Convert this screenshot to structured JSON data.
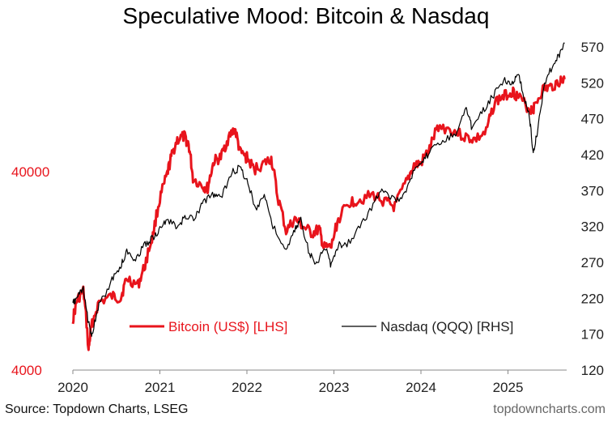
{
  "chart_data": {
    "type": "line",
    "title": "Speculative Mood: Bitcoin & Nasdaq",
    "xlabel": "",
    "x_ticks": [
      "2020",
      "2021",
      "2022",
      "2023",
      "2024",
      "2025"
    ],
    "x_range": [
      2020.0,
      2025.65
    ],
    "left_axis": {
      "scale": "log",
      "range": [
        4000,
        100000
      ],
      "ticks": [
        "40000",
        "4000"
      ],
      "tick_values": [
        40000,
        4000
      ],
      "color": "#e8141c"
    },
    "right_axis": {
      "scale": "linear",
      "range": [
        120,
        590
      ],
      "ticks": [
        "570",
        "520",
        "470",
        "420",
        "370",
        "320",
        "270",
        "220",
        "170",
        "120"
      ],
      "tick_values": [
        570,
        520,
        470,
        420,
        370,
        320,
        270,
        220,
        170,
        120
      ]
    },
    "series": [
      {
        "name": "Bitcoin (US$) [LHS]",
        "axis": "left",
        "color": "#e8141c",
        "points": [
          [
            2020.0,
            7200
          ],
          [
            2020.05,
            9000
          ],
          [
            2020.12,
            10000
          ],
          [
            2020.18,
            5000
          ],
          [
            2020.21,
            6500
          ],
          [
            2020.3,
            8800
          ],
          [
            2020.45,
            9400
          ],
          [
            2020.55,
            9200
          ],
          [
            2020.62,
            11600
          ],
          [
            2020.75,
            10700
          ],
          [
            2020.83,
            13500
          ],
          [
            2020.92,
            19000
          ],
          [
            2021.0,
            29000
          ],
          [
            2021.08,
            38000
          ],
          [
            2021.13,
            47000
          ],
          [
            2021.2,
            58000
          ],
          [
            2021.28,
            60000
          ],
          [
            2021.33,
            55000
          ],
          [
            2021.38,
            37000
          ],
          [
            2021.5,
            33500
          ],
          [
            2021.55,
            33000
          ],
          [
            2021.62,
            45000
          ],
          [
            2021.7,
            47000
          ],
          [
            2021.78,
            58000
          ],
          [
            2021.86,
            66000
          ],
          [
            2021.92,
            50000
          ],
          [
            2022.0,
            47000
          ],
          [
            2022.08,
            41000
          ],
          [
            2022.2,
            44000
          ],
          [
            2022.28,
            46500
          ],
          [
            2022.35,
            30000
          ],
          [
            2022.45,
            20000
          ],
          [
            2022.55,
            23000
          ],
          [
            2022.65,
            21000
          ],
          [
            2022.75,
            19500
          ],
          [
            2022.83,
            20500
          ],
          [
            2022.88,
            16500
          ],
          [
            2022.97,
            16600
          ],
          [
            2023.05,
            23000
          ],
          [
            2023.18,
            28000
          ],
          [
            2023.3,
            29000
          ],
          [
            2023.45,
            30500
          ],
          [
            2023.6,
            28000
          ],
          [
            2023.7,
            26500
          ],
          [
            2023.83,
            35000
          ],
          [
            2023.92,
            43000
          ],
          [
            2024.0,
            44000
          ],
          [
            2024.1,
            52000
          ],
          [
            2024.2,
            68000
          ],
          [
            2024.35,
            65000
          ],
          [
            2024.5,
            60000
          ],
          [
            2024.62,
            58000
          ],
          [
            2024.75,
            63000
          ],
          [
            2024.85,
            90000
          ],
          [
            2024.95,
            96000
          ],
          [
            2025.05,
            102000
          ],
          [
            2025.12,
            95000
          ],
          [
            2025.25,
            82000
          ],
          [
            2025.3,
            84000
          ],
          [
            2025.4,
            104000
          ],
          [
            2025.5,
            107000
          ],
          [
            2025.6,
            115000
          ],
          [
            2025.65,
            117000
          ]
        ]
      },
      {
        "name": "Nasdaq (QQQ) [RHS]",
        "axis": "right",
        "color": "#000000",
        "points": [
          [
            2020.0,
            212
          ],
          [
            2020.05,
            222
          ],
          [
            2020.12,
            232
          ],
          [
            2020.18,
            185
          ],
          [
            2020.22,
            170
          ],
          [
            2020.3,
            210
          ],
          [
            2020.45,
            245
          ],
          [
            2020.55,
            265
          ],
          [
            2020.62,
            285
          ],
          [
            2020.72,
            275
          ],
          [
            2020.83,
            295
          ],
          [
            2020.92,
            305
          ],
          [
            2021.0,
            315
          ],
          [
            2021.08,
            330
          ],
          [
            2021.2,
            318
          ],
          [
            2021.3,
            335
          ],
          [
            2021.4,
            330
          ],
          [
            2021.5,
            355
          ],
          [
            2021.62,
            365
          ],
          [
            2021.7,
            360
          ],
          [
            2021.83,
            395
          ],
          [
            2021.92,
            402
          ],
          [
            2022.0,
            385
          ],
          [
            2022.1,
            345
          ],
          [
            2022.2,
            365
          ],
          [
            2022.3,
            320
          ],
          [
            2022.45,
            285
          ],
          [
            2022.55,
            315
          ],
          [
            2022.62,
            330
          ],
          [
            2022.72,
            280
          ],
          [
            2022.8,
            270
          ],
          [
            2022.9,
            290
          ],
          [
            2022.97,
            265
          ],
          [
            2023.05,
            295
          ],
          [
            2023.15,
            295
          ],
          [
            2023.3,
            320
          ],
          [
            2023.45,
            350
          ],
          [
            2023.55,
            375
          ],
          [
            2023.65,
            360
          ],
          [
            2023.78,
            355
          ],
          [
            2023.88,
            390
          ],
          [
            2024.0,
            405
          ],
          [
            2024.1,
            425
          ],
          [
            2024.25,
            440
          ],
          [
            2024.4,
            450
          ],
          [
            2024.52,
            485
          ],
          [
            2024.58,
            460
          ],
          [
            2024.7,
            480
          ],
          [
            2024.82,
            500
          ],
          [
            2024.95,
            525
          ],
          [
            2025.05,
            520
          ],
          [
            2025.12,
            530
          ],
          [
            2025.2,
            495
          ],
          [
            2025.25,
            470
          ],
          [
            2025.29,
            420
          ],
          [
            2025.34,
            455
          ],
          [
            2025.42,
            520
          ],
          [
            2025.52,
            545
          ],
          [
            2025.6,
            560
          ],
          [
            2025.65,
            575
          ]
        ]
      }
    ],
    "legend": {
      "placement": "lower-center",
      "entries": [
        "Bitcoin (US$) [LHS]",
        "Nasdaq (QQQ) [RHS]"
      ]
    }
  },
  "footer": {
    "source": "Source: Topdown Charts, LSEG",
    "brand": "topdowncharts.com"
  }
}
